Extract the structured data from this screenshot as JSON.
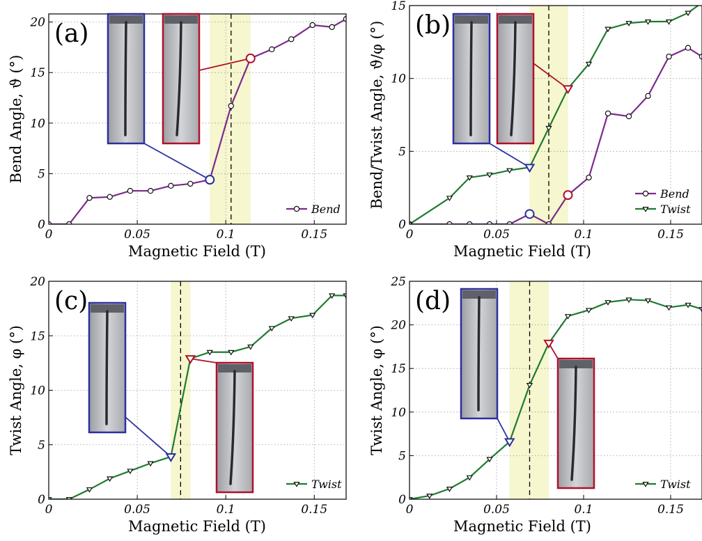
{
  "colors": {
    "bend": "#7b2a8c",
    "twist": "#1e7b2e",
    "highlight_blue": "#2b2f9c",
    "highlight_red": "#b0102a",
    "band": "#f6f6cf",
    "grid": "#9a9a9a"
  },
  "chart_data": [
    {
      "panel": "(a)",
      "type": "line",
      "xlabel": "Magnetic Field (T)",
      "ylabel": "Bend Angle, ϑ (°)",
      "xlim": [
        0,
        0.168
      ],
      "ylim": [
        0,
        20.8
      ],
      "xticks": [
        0,
        0.05,
        0.1,
        0.15
      ],
      "xtick_labels": [
        "0",
        "0.05",
        "0.1",
        "0.15"
      ],
      "yticks": [
        0,
        5,
        10,
        15,
        20
      ],
      "ytick_labels": [
        "0",
        "5",
        "10",
        "15",
        "20"
      ],
      "grid": true,
      "legend": "bottom-right",
      "band": [
        0.091,
        0.114
      ],
      "vline": 0.103,
      "series": [
        {
          "name": "Bend",
          "marker": "circle",
          "color": "#7b2a8c",
          "x": [
            0,
            0.0115,
            0.023,
            0.0345,
            0.046,
            0.0575,
            0.069,
            0.08,
            0.091,
            0.103,
            0.114,
            0.126,
            0.137,
            0.149,
            0.16,
            0.168
          ],
          "y": [
            0,
            0,
            2.6,
            2.7,
            3.3,
            3.3,
            3.8,
            4.0,
            4.4,
            11.7,
            16.4,
            17.3,
            18.3,
            19.7,
            19.5,
            20.3
          ]
        }
      ],
      "highlights": [
        {
          "series": 0,
          "x": 0.091,
          "y": 4.4,
          "color": "#2b2f9c",
          "marker": "circle"
        },
        {
          "series": 0,
          "x": 0.114,
          "y": 16.4,
          "color": "#b0102a",
          "marker": "circle"
        }
      ]
    },
    {
      "panel": "(b)",
      "type": "line",
      "xlabel": "Magnetic Field (T)",
      "ylabel": "Bend/Twist Angle, ϑ/φ (°)",
      "xlim": [
        0,
        0.168
      ],
      "ylim": [
        0,
        15
      ],
      "xticks": [
        0,
        0.05,
        0.1,
        0.15
      ],
      "xtick_labels": [
        "0",
        "0.05",
        "0.1",
        "0.15"
      ],
      "yticks": [
        0,
        5,
        10,
        15
      ],
      "ytick_labels": [
        "0",
        "5",
        "10",
        "15"
      ],
      "grid": true,
      "legend": "bottom-right",
      "band": [
        0.069,
        0.091
      ],
      "vline": 0.08,
      "series": [
        {
          "name": "Bend",
          "marker": "circle",
          "color": "#7b2a8c",
          "x": [
            0,
            0.023,
            0.0345,
            0.046,
            0.0575,
            0.069,
            0.08,
            0.091,
            0.103,
            0.114,
            0.126,
            0.137,
            0.149,
            0.16,
            0.168
          ],
          "y": [
            0,
            0,
            0,
            0,
            0,
            0.7,
            0,
            2.0,
            3.2,
            7.6,
            7.4,
            8.8,
            11.5,
            12.1,
            11.5
          ]
        },
        {
          "name": "Twist",
          "marker": "triangle",
          "color": "#1e7b2e",
          "x": [
            0,
            0.023,
            0.0345,
            0.046,
            0.0575,
            0.069,
            0.08,
            0.091,
            0.103,
            0.114,
            0.126,
            0.137,
            0.149,
            0.16,
            0.168
          ],
          "y": [
            0,
            1.8,
            3.2,
            3.4,
            3.7,
            3.9,
            6.6,
            9.3,
            11.0,
            13.4,
            13.8,
            13.9,
            13.9,
            14.5,
            15.2
          ]
        }
      ],
      "highlights": [
        {
          "series": 1,
          "x": 0.069,
          "y": 3.9,
          "color": "#2b2f9c",
          "marker": "triangle"
        },
        {
          "series": 0,
          "x": 0.069,
          "y": 0.7,
          "color": "#2b2f9c",
          "marker": "circle"
        },
        {
          "series": 1,
          "x": 0.091,
          "y": 9.3,
          "color": "#b0102a",
          "marker": "triangle"
        },
        {
          "series": 0,
          "x": 0.091,
          "y": 2.0,
          "color": "#b0102a",
          "marker": "circle"
        }
      ]
    },
    {
      "panel": "(c)",
      "type": "line",
      "xlabel": "Magnetic Field (T)",
      "ylabel": "Twist Angle, φ (°)",
      "xlim": [
        0,
        0.168
      ],
      "ylim": [
        0,
        20
      ],
      "xticks": [
        0,
        0.05,
        0.1,
        0.15
      ],
      "xtick_labels": [
        "0",
        "0.05",
        "0.1",
        "0.15"
      ],
      "yticks": [
        0,
        5,
        10,
        15,
        20
      ],
      "ytick_labels": [
        "0",
        "5",
        "10",
        "15",
        "20"
      ],
      "grid": true,
      "legend": "bottom-right",
      "band": [
        0.069,
        0.08
      ],
      "vline": 0.0745,
      "series": [
        {
          "name": "Twist",
          "marker": "triangle",
          "color": "#1e7b2e",
          "x": [
            0,
            0.0115,
            0.023,
            0.0345,
            0.046,
            0.0575,
            0.069,
            0.08,
            0.091,
            0.103,
            0.114,
            0.126,
            0.137,
            0.149,
            0.16,
            0.168
          ],
          "y": [
            0,
            0,
            0.9,
            1.9,
            2.6,
            3.3,
            3.9,
            12.9,
            13.5,
            13.5,
            14.0,
            15.7,
            16.6,
            16.9,
            18.7,
            18.7
          ]
        }
      ],
      "highlights": [
        {
          "series": 0,
          "x": 0.069,
          "y": 3.9,
          "color": "#2b2f9c",
          "marker": "triangle"
        },
        {
          "series": 0,
          "x": 0.08,
          "y": 12.9,
          "color": "#b0102a",
          "marker": "triangle"
        }
      ]
    },
    {
      "panel": "(d)",
      "type": "line",
      "xlabel": "Magnetic Field (T)",
      "ylabel": "Twist Angle, φ (°)",
      "xlim": [
        0,
        0.168
      ],
      "ylim": [
        0,
        25
      ],
      "xticks": [
        0,
        0.05,
        0.1,
        0.15
      ],
      "xtick_labels": [
        "0",
        "0.05",
        "0.1",
        "0.15"
      ],
      "yticks": [
        0,
        5,
        10,
        15,
        20,
        25
      ],
      "ytick_labels": [
        "0",
        "5",
        "10",
        "15",
        "20",
        "25"
      ],
      "grid": true,
      "legend": "bottom-right",
      "band": [
        0.0575,
        0.08
      ],
      "vline": 0.069,
      "series": [
        {
          "name": "Twist",
          "marker": "triangle",
          "color": "#1e7b2e",
          "x": [
            0,
            0.0115,
            0.023,
            0.0345,
            0.046,
            0.0575,
            0.069,
            0.08,
            0.091,
            0.103,
            0.114,
            0.126,
            0.137,
            0.149,
            0.16,
            0.168
          ],
          "y": [
            0,
            0.4,
            1.2,
            2.5,
            4.6,
            6.6,
            13.1,
            17.9,
            21.0,
            21.7,
            22.6,
            22.9,
            22.8,
            22.0,
            22.3,
            21.8
          ]
        }
      ],
      "highlights": [
        {
          "series": 0,
          "x": 0.0575,
          "y": 6.6,
          "color": "#2b2f9c",
          "marker": "triangle"
        },
        {
          "series": 0,
          "x": 0.08,
          "y": 17.9,
          "color": "#b0102a",
          "marker": "triangle"
        }
      ]
    }
  ]
}
